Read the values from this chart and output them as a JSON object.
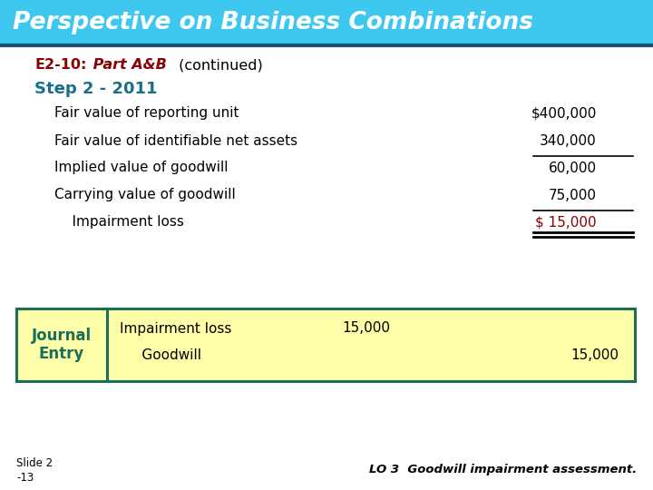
{
  "title": "Perspective on Business Combinations",
  "title_bg_top": "#3EC8F0",
  "title_bg_bot": "#1A8FC0",
  "title_font_color": "#FFFFFF",
  "subtitle_bold": "E2-10:",
  "subtitle_italic": " Part A&B",
  "subtitle_normal": " (continued)",
  "step_label": "Step 2 - 2011",
  "step_color": "#1A6E8A",
  "rows": [
    {
      "label": "Fair value of reporting unit",
      "value": "$400,000",
      "underline_before": false,
      "color": "#000000",
      "double_underline": false
    },
    {
      "label": "Fair value of identifiable net assets",
      "value": "340,000",
      "underline_before": false,
      "color": "#000000",
      "double_underline": false
    },
    {
      "label": "Implied value of goodwill",
      "value": "60,000",
      "underline_before": true,
      "color": "#000000",
      "double_underline": false
    },
    {
      "label": "Carrying value of goodwill",
      "value": "75,000",
      "underline_before": false,
      "color": "#000000",
      "double_underline": false
    },
    {
      "label": "    Impairment loss",
      "value": "$ 15,000",
      "underline_before": true,
      "color": "#8B0000",
      "double_underline": true
    }
  ],
  "journal_bg": "#FFFFAA",
  "journal_border": "#1A6E5A",
  "journal_label": "Journal\nEntry",
  "journal_label_color": "#1A6E5A",
  "journal_rows": [
    {
      "desc": "Impairment loss",
      "debit": "15,000",
      "credit": ""
    },
    {
      "desc": "     Goodwill",
      "debit": "",
      "credit": "15,000"
    }
  ],
  "slide_label": "Slide 2\n-13",
  "footer_text": "LO 3  Goodwill impairment assessment.",
  "bg_color": "#FFFFFF",
  "value_color_default": "#000000",
  "value_color_highlight": "#8B0000",
  "subtitle_color": "#8B0000"
}
